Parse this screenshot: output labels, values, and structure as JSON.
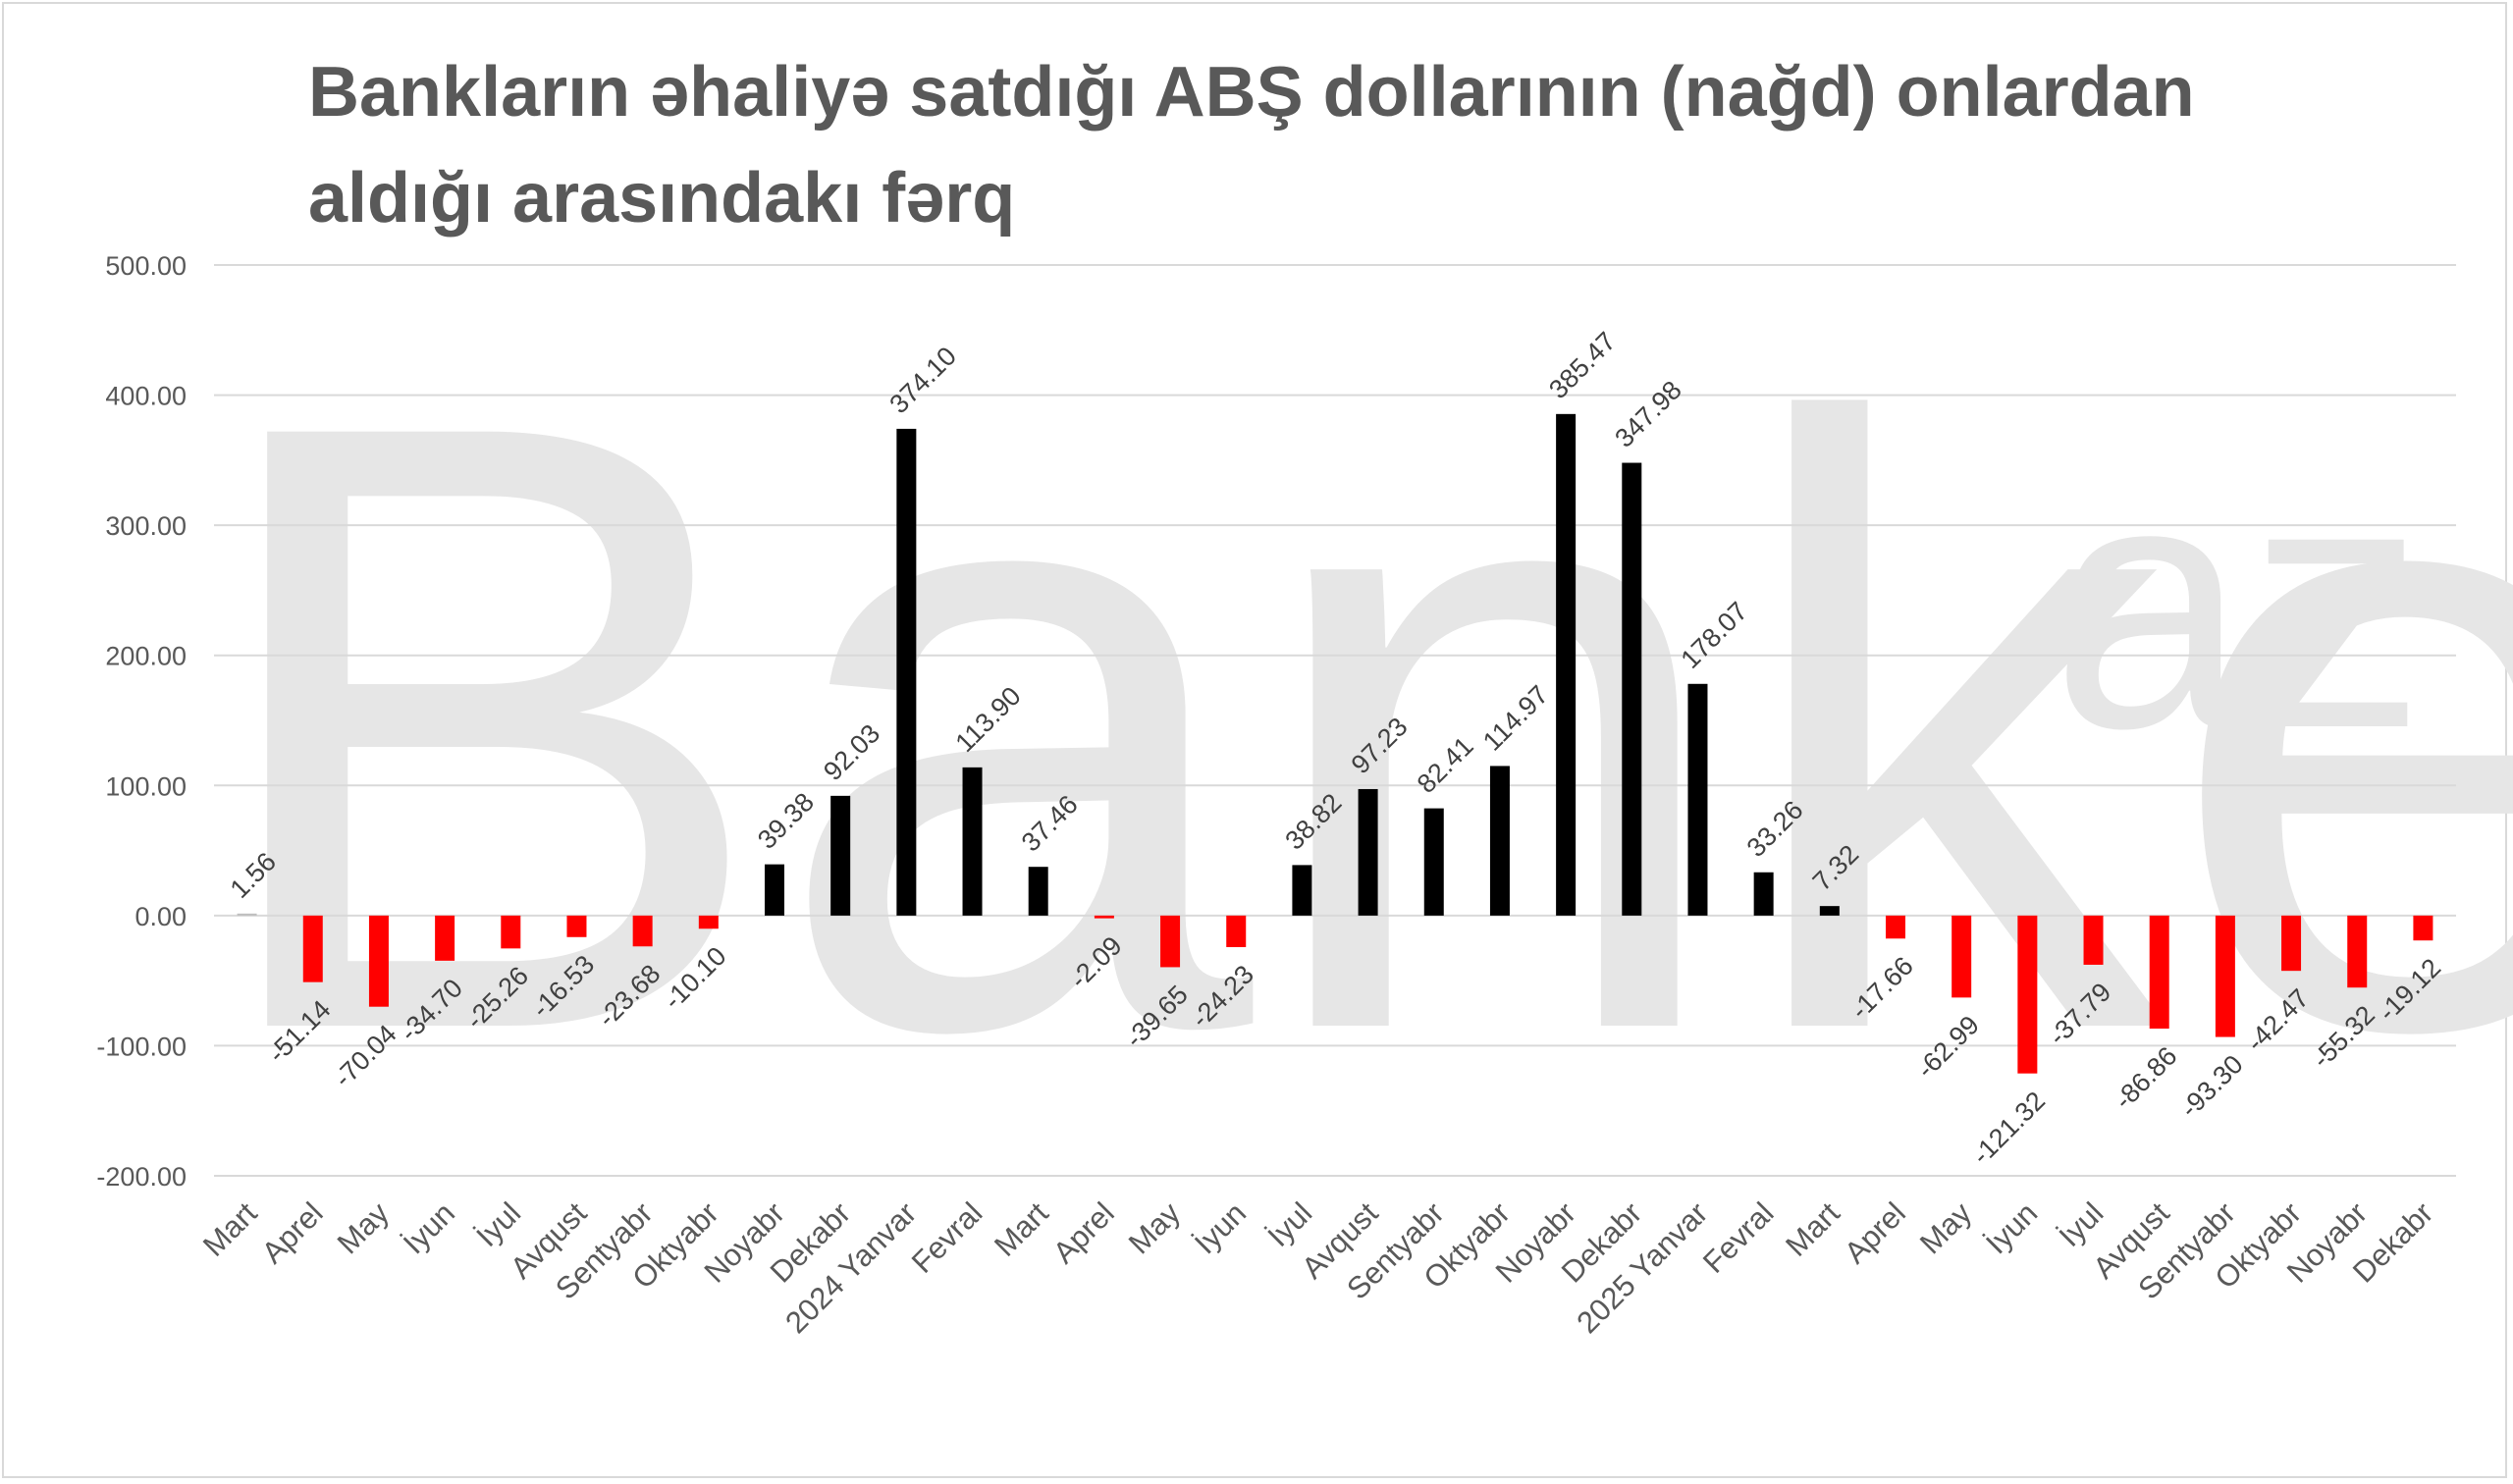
{
  "chart_data": {
    "type": "bar",
    "title": "Bankların əhaliyə satdığı ABŞ dollarının (nağd) onlardan aldığı arasındakı fərq",
    "xlabel": "",
    "ylabel": "",
    "ylim": [
      -200,
      500
    ],
    "yticks": [
      "500.00",
      "400.00",
      "300.00",
      "200.00",
      "100.00",
      "0.00",
      "-100.00",
      "-200.00"
    ],
    "ytick_values": [
      500,
      400,
      300,
      200,
      100,
      0,
      -100,
      -200
    ],
    "grid": true,
    "legend": "none",
    "positive_color": "#000000",
    "negative_color": "#ff0000",
    "first_bar_color": "#bfbfbf",
    "watermark_main": "Banker",
    "watermark_sup": "az",
    "categories": [
      "Mart",
      "Aprel",
      "May",
      "İyun",
      "İyul",
      "Avqust",
      "Sentyabr",
      "Oktyabr",
      "Noyabr",
      "Dekabr",
      "2024 Yanvar",
      "Fevral",
      "Mart",
      "Aprel",
      "May",
      "İyun",
      "İyul",
      "Avqust",
      "Sentyabr",
      "Oktyabr",
      "Noyabr",
      "Dekabr",
      "2025 Yanvar",
      "Fevral",
      "Mart",
      "Aprel",
      "May",
      "İyun",
      "İyul",
      "Avqust",
      "Sentyabr",
      "Oktyabr",
      "Noyabr",
      "Dekabr"
    ],
    "values": [
      1.56,
      -51.14,
      -70.04,
      -34.7,
      -25.26,
      -16.53,
      -23.68,
      -10.1,
      39.38,
      92.03,
      374.1,
      113.9,
      37.46,
      -2.09,
      -39.65,
      -24.23,
      38.82,
      97.23,
      82.41,
      114.97,
      385.47,
      347.98,
      178.07,
      33.26,
      7.32,
      -17.66,
      -62.99,
      -121.32,
      -37.79,
      -86.86,
      -93.3,
      -42.47,
      -55.32,
      -19.12
    ],
    "labels": [
      "1.56",
      "-51.14",
      "-70.04",
      "-34.70",
      "-25.26",
      "-16.53",
      "-23.68",
      "-10.10",
      "39.38",
      "92.03",
      "374.10",
      "113.90",
      "37.46",
      "-2.09",
      "-39.65",
      "-24.23",
      "38.82",
      "97.23",
      "82.41",
      "114.97",
      "385.47",
      "347.98",
      "178.07",
      "33.26",
      "7.32",
      "-17.66",
      "-62.99",
      "-121.32",
      "-37.79",
      "-86.86",
      "-93.30",
      "-42.47",
      "-55.32",
      "-19.12"
    ]
  }
}
